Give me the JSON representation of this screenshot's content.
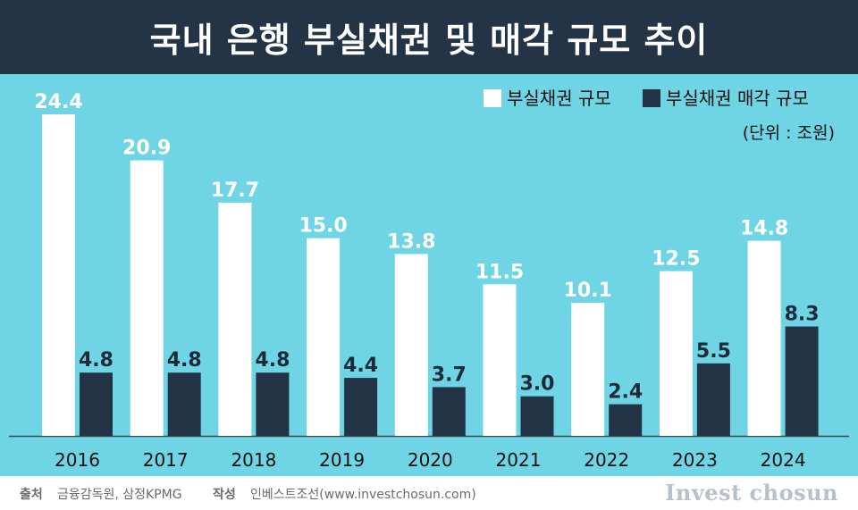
{
  "header": {
    "title": "국내 은행 부실채권 및 매각 규모 추이"
  },
  "colors": {
    "background": "#6fd4e3",
    "header": "#243447",
    "series_1": "#ffffff",
    "series_2": "#243447"
  },
  "chart_data": {
    "type": "bar",
    "title": "국내 은행 부실채권 및 매각 규모 추이",
    "unit_note": "(단위 : 조원)",
    "legend_position": "top-right",
    "grid": false,
    "categories": [
      "2016",
      "2017",
      "2018",
      "2019",
      "2020",
      "2021",
      "2022",
      "2023",
      "2024"
    ],
    "series": [
      {
        "name": "부실채권 규모",
        "color": "#ffffff",
        "values": [
          24.4,
          20.9,
          17.7,
          15.0,
          13.8,
          11.5,
          10.1,
          12.5,
          14.8
        ],
        "labels": [
          "24.4",
          "20.9",
          "17.7",
          "15.0",
          "13.8",
          "11.5",
          "10.1",
          "12.5",
          "14.8"
        ]
      },
      {
        "name": "부실채권 매각 규모",
        "color": "#243447",
        "values": [
          4.8,
          4.8,
          4.8,
          4.4,
          3.7,
          3.0,
          2.4,
          5.5,
          8.3
        ],
        "labels": [
          "4.8",
          "4.8",
          "4.8",
          "4.4",
          "3.7",
          "3.0",
          "2.4",
          "5.5",
          "8.3"
        ]
      }
    ],
    "ylim": [
      0,
      24.4
    ]
  },
  "footer": {
    "source_label": "출처",
    "source_text": "금융감독원, 삼정KPMG",
    "author_label": "작성",
    "author_text": "인베스트조선(www.investchosun.com)",
    "brand": "Invest chosun"
  }
}
